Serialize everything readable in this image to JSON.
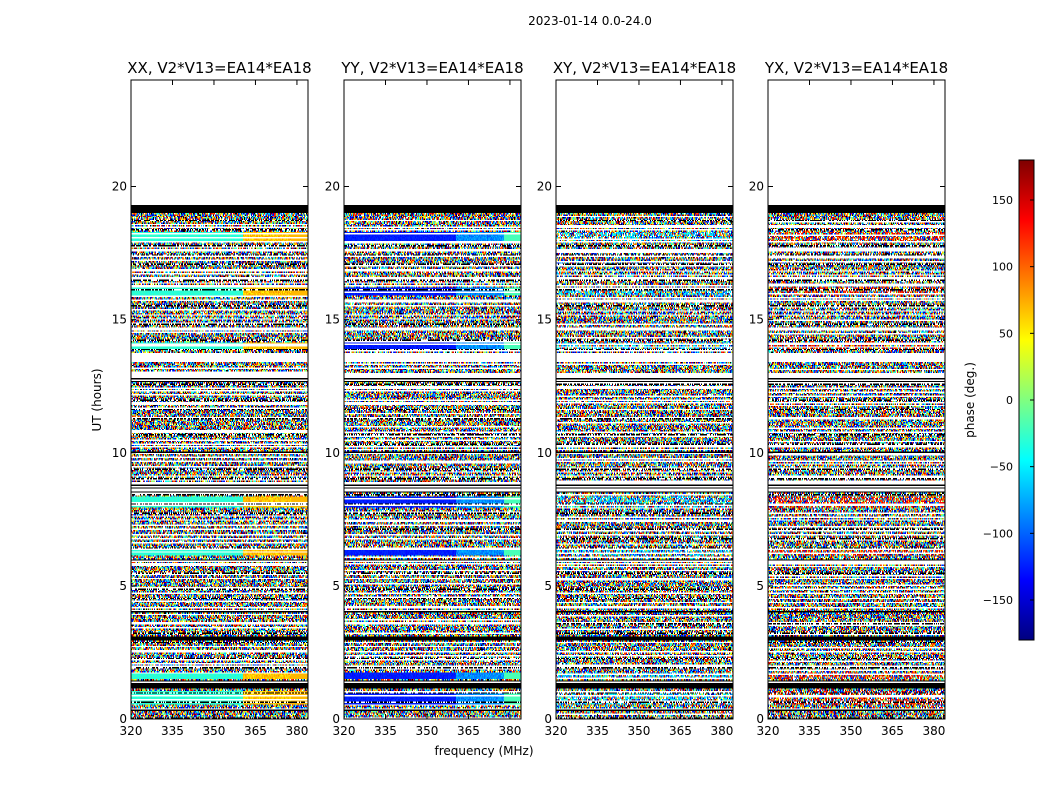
{
  "figure": {
    "suptitle": "2023-01-14 0.0-24.0"
  },
  "chart_data": {
    "type": "heatmap",
    "xlabel": "frequency (MHz)",
    "ylabel": "UT (hours)",
    "xlim": [
      320,
      384
    ],
    "ylim": [
      0,
      24
    ],
    "xticks": [
      320,
      335,
      350,
      365,
      380
    ],
    "yticks": [
      0,
      5,
      10,
      15,
      20
    ],
    "no_data_above_hours": 19.3,
    "flagged_band_hours": [
      19.0,
      19.3
    ],
    "frequency_split_mhz": 360.5,
    "panels": [
      {
        "title": "XX, V2*V13=EA14*EA18",
        "polarization": "XX",
        "calibrator_phase_deg": -30
      },
      {
        "title": "YY, V2*V13=EA14*EA18",
        "polarization": "YY",
        "calibrator_phase_deg": -125
      },
      {
        "title": "XY, V2*V13=EA14*EA18",
        "polarization": "XY",
        "calibrator_phase_deg": null
      },
      {
        "title": "YX, V2*V13=EA14*EA18",
        "polarization": "YX",
        "calibrator_phase_deg": null
      }
    ],
    "calibrator_scans_hours": [
      [
        0.55,
        1.05
      ],
      [
        1.5,
        1.75
      ],
      [
        6.15,
        6.45
      ],
      [
        7.95,
        8.35
      ],
      [
        13.9,
        14.15
      ],
      [
        15.9,
        16.2
      ],
      [
        17.95,
        18.3
      ]
    ],
    "flagged_scans_hours": [
      [
        0.3,
        0.38
      ],
      [
        1.15,
        1.45
      ],
      [
        2.95,
        3.1
      ],
      [
        4.0,
        4.05
      ],
      [
        5.9,
        6.0
      ],
      [
        8.5,
        8.9
      ],
      [
        9.95,
        10.05
      ],
      [
        12.65,
        12.95
      ],
      [
        13.4,
        13.75
      ],
      [
        14.65,
        14.72
      ],
      [
        16.5,
        16.58
      ],
      [
        17.55,
        17.65
      ]
    ],
    "colorbar": {
      "label": "phase (deg.)",
      "range": [
        -180,
        180
      ],
      "ticks": [
        -150,
        -100,
        -50,
        0,
        50,
        100,
        150
      ],
      "tick_labels": [
        "−150",
        "−100",
        "−50",
        "0",
        "50",
        "100",
        "150"
      ],
      "colormap": "jet",
      "stops": [
        "#00007f",
        "#0000ff",
        "#00ffff",
        "#80ff80",
        "#ffff00",
        "#ff0000",
        "#7f0000"
      ]
    }
  }
}
